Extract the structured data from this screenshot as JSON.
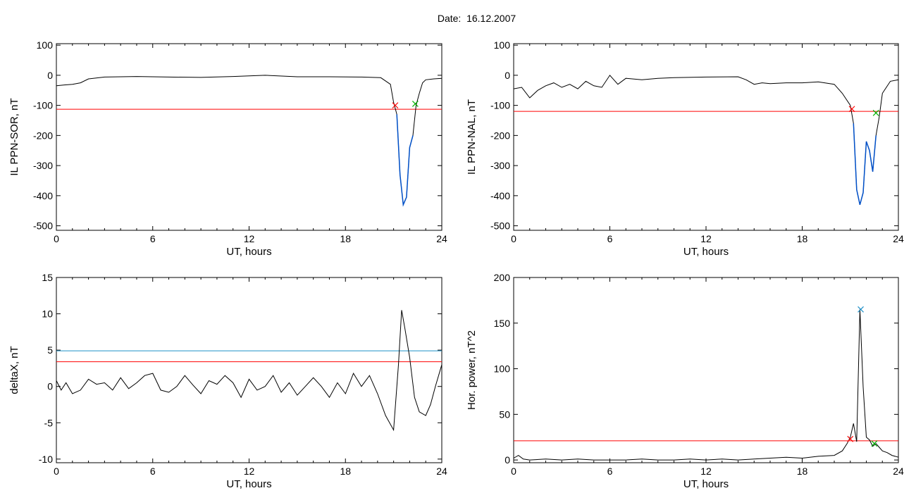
{
  "title": "Date:  16.12.2007",
  "colors": {
    "data": "#000000",
    "threshold": "#ff0000",
    "upper_threshold": "#1e90c8",
    "highlight": "#0050c8",
    "marker_start": "#ff0000",
    "marker_end": "#00b000",
    "marker_peak": "#1e90ff"
  },
  "chart_data": [
    {
      "id": "il-ppn-sor",
      "type": "line",
      "xlabel": "UT, hours",
      "ylabel": "IL PPN-SOR, nT",
      "xlim": [
        0,
        24
      ],
      "ylim": [
        -515,
        105
      ],
      "xticks": [
        0,
        6,
        12,
        18,
        24
      ],
      "yticks": [
        100,
        0,
        -100,
        -200,
        -300,
        -400,
        -500
      ],
      "thresholds": [
        {
          "y": -113,
          "color": "red"
        }
      ],
      "series": [
        {
          "x": [
            0,
            0.5,
            1,
            1.5,
            2,
            3,
            5,
            7,
            9,
            11,
            13,
            15,
            17,
            19,
            20.2,
            20.8,
            21.0,
            21.2,
            21.4,
            21.6,
            21.8,
            22.0,
            22.2,
            22.4,
            22.6,
            22.8,
            23.0,
            23.5,
            24
          ],
          "y": [
            -35,
            -32,
            -30,
            -25,
            -12,
            -6,
            -4,
            -6,
            -7,
            -4,
            0,
            -5,
            -5,
            -6,
            -8,
            -30,
            -90,
            -130,
            -330,
            -430,
            -405,
            -240,
            -200,
            -100,
            -60,
            -25,
            -15,
            -12,
            -10
          ]
        }
      ],
      "highlight": {
        "x_start": 21.2,
        "x_end": 22.3
      },
      "markers": [
        {
          "x": 21.1,
          "y": -100,
          "color": "red"
        },
        {
          "x": 22.35,
          "y": -95,
          "color": "green"
        }
      ]
    },
    {
      "id": "il-ppn-nal",
      "type": "line",
      "xlabel": "UT, hours",
      "ylabel": "IL PPN-NAL, nT",
      "xlim": [
        0,
        24
      ],
      "ylim": [
        -515,
        105
      ],
      "xticks": [
        0,
        6,
        12,
        18,
        24
      ],
      "yticks": [
        100,
        0,
        -100,
        -200,
        -300,
        -400,
        -500
      ],
      "thresholds": [
        {
          "y": -120,
          "color": "red"
        }
      ],
      "series": [
        {
          "x": [
            0,
            0.5,
            1,
            1.5,
            2,
            2.5,
            3,
            3.5,
            4,
            4.5,
            5,
            5.5,
            6,
            6.5,
            7,
            8,
            9,
            10,
            12,
            14,
            14.5,
            15,
            15.5,
            16,
            17,
            18,
            19,
            20,
            20.5,
            21.0,
            21.2,
            21.4,
            21.6,
            21.8,
            22.0,
            22.2,
            22.4,
            22.6,
            22.8,
            23.0,
            23.5,
            24
          ],
          "y": [
            -45,
            -40,
            -75,
            -50,
            -35,
            -25,
            -40,
            -30,
            -45,
            -20,
            -35,
            -40,
            0,
            -30,
            -10,
            -15,
            -10,
            -8,
            -6,
            -5,
            -15,
            -30,
            -25,
            -28,
            -25,
            -25,
            -22,
            -30,
            -60,
            -100,
            -160,
            -380,
            -430,
            -390,
            -220,
            -250,
            -320,
            -200,
            -140,
            -60,
            -20,
            -15
          ]
        }
      ],
      "highlight": {
        "x_start": 21.2,
        "x_end": 22.6
      },
      "markers": [
        {
          "x": 21.1,
          "y": -112,
          "color": "red"
        },
        {
          "x": 22.6,
          "y": -125,
          "color": "green"
        }
      ]
    },
    {
      "id": "delta-x",
      "type": "line",
      "xlabel": "UT, hours",
      "ylabel": "deltaX, nT",
      "xlim": [
        0,
        24
      ],
      "ylim": [
        -10.5,
        15
      ],
      "xticks": [
        0,
        6,
        12,
        18,
        24
      ],
      "yticks": [
        15,
        10,
        5,
        0,
        -5,
        -10
      ],
      "thresholds": [
        {
          "y": 4.9,
          "color": "blue"
        },
        {
          "y": 3.4,
          "color": "red"
        }
      ],
      "series": [
        {
          "x": [
            0,
            0.3,
            0.6,
            1,
            1.5,
            2,
            2.5,
            3,
            3.5,
            4,
            4.5,
            5,
            5.5,
            6,
            6.5,
            7,
            7.5,
            8,
            8.5,
            9,
            9.5,
            10,
            10.5,
            11,
            11.5,
            12,
            12.5,
            13,
            13.5,
            14,
            14.5,
            15,
            15.5,
            16,
            16.5,
            17,
            17.5,
            18,
            18.5,
            19,
            19.5,
            20,
            20.5,
            21.0,
            21.3,
            21.5,
            21.7,
            22.0,
            22.3,
            22.6,
            23.0,
            23.3,
            23.6,
            24
          ],
          "y": [
            0.8,
            -0.5,
            0.5,
            -1,
            -0.5,
            1,
            0.3,
            0.5,
            -0.5,
            1.2,
            -0.3,
            0.5,
            1.5,
            1.8,
            -0.5,
            -0.8,
            0,
            1.5,
            0.2,
            -1,
            0.8,
            0.3,
            1.5,
            0.5,
            -1.5,
            1,
            -0.5,
            0,
            1.5,
            -0.8,
            0.5,
            -1.2,
            0,
            1.2,
            0,
            -1.5,
            0.5,
            -1,
            1.8,
            0,
            1.5,
            -1,
            -4,
            -6,
            3,
            10.5,
            8,
            4,
            -1.5,
            -3.5,
            -4,
            -2.5,
            0,
            3
          ]
        }
      ],
      "markers": []
    },
    {
      "id": "hor-power",
      "type": "line",
      "xlabel": "UT, hours",
      "ylabel": "Hor. power, nT^2",
      "xlim": [
        0,
        24
      ],
      "ylim": [
        -3,
        200
      ],
      "xticks": [
        0,
        6,
        12,
        18,
        24
      ],
      "yticks": [
        200,
        150,
        100,
        50,
        0
      ],
      "thresholds": [
        {
          "y": 21,
          "color": "red"
        }
      ],
      "series": [
        {
          "x": [
            0,
            0.3,
            0.6,
            1,
            2,
            3,
            4,
            5,
            6,
            7,
            8,
            9,
            10,
            11,
            12,
            13,
            14,
            15,
            16,
            17,
            18,
            19,
            20,
            20.5,
            20.8,
            21.0,
            21.2,
            21.4,
            21.6,
            21.8,
            22.0,
            22.2,
            22.4,
            22.6,
            22.8,
            23.0,
            23.3,
            23.6,
            24
          ],
          "y": [
            2,
            5,
            1,
            0,
            1,
            0,
            1,
            0,
            0,
            0,
            1,
            0,
            0,
            1,
            0,
            1,
            0,
            1,
            2,
            3,
            2,
            4,
            5,
            10,
            18,
            25,
            40,
            20,
            165,
            80,
            25,
            22,
            15,
            18,
            14,
            10,
            8,
            5,
            3
          ]
        }
      ],
      "markers": [
        {
          "x": 21.65,
          "y": 165,
          "color": "blue"
        },
        {
          "x": 21.0,
          "y": 23,
          "color": "red"
        },
        {
          "x": 22.5,
          "y": 18,
          "color": "green"
        }
      ]
    }
  ]
}
